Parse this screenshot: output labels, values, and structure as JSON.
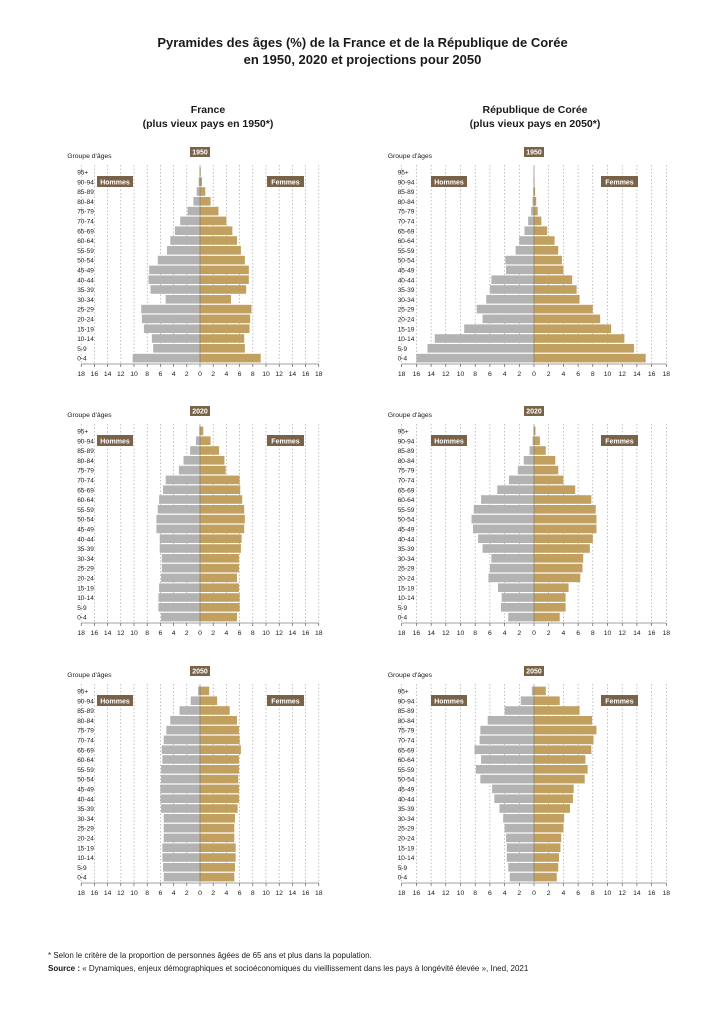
{
  "title_line1": "Pyramides des âges (%) de la France et de la République de Corée",
  "title_line2": "en 1950, 2020 et projections pour 2050",
  "columns": [
    {
      "name": "France",
      "subtitle": "(plus vieux pays en 1950*)"
    },
    {
      "name": "République de Corée",
      "subtitle": "(plus vieux pays en 2050*)"
    }
  ],
  "footnote": "* Selon le critère de la proportion de personnes âgées de 65 ans et plus dans la population.",
  "source_label": "Source :",
  "source_text": " « Dynamiques, enjeux démographiques et socioéconomiques du vieillissement dans les pays à longévité élevée », Ined, 2021",
  "colors": {
    "men": "#b3b3b3",
    "women": "#c2a160",
    "label_bg": "#7a6248",
    "grid": "#9a9a9a"
  },
  "chart_data": [
    {
      "type": "bar",
      "orientation": "horizontal-pyramid",
      "country": "France",
      "year": "1950",
      "ylabel": "Groupe d'âges",
      "men_label": "Hommes",
      "women_label": "Femmes",
      "age_groups": [
        "0-4",
        "5-9",
        "10-14",
        "15-19",
        "20-24",
        "25-29",
        "30-34",
        "35-39",
        "40-44",
        "45-49",
        "50-54",
        "55-59",
        "60-64",
        "65-69",
        "70-74",
        "75-79",
        "80-84",
        "85-89",
        "90-94",
        "95+"
      ],
      "xticks": [
        "18",
        "16",
        "14",
        "12",
        "10",
        "8",
        "6",
        "4",
        "2",
        "0",
        "2",
        "4",
        "6",
        "8",
        "10",
        "12",
        "14",
        "16",
        "18"
      ],
      "xlim": [
        0,
        18
      ],
      "men": [
        10.2,
        7.1,
        7.3,
        8.5,
        8.8,
        8.9,
        5.2,
        7.5,
        7.8,
        7.7,
        6.4,
        5.0,
        4.5,
        3.8,
        3.0,
        1.9,
        1.0,
        0.5,
        0.2,
        0.05
      ],
      "women": [
        9.2,
        6.8,
        6.7,
        7.5,
        7.6,
        7.8,
        4.7,
        7.0,
        7.4,
        7.4,
        6.8,
        6.2,
        5.6,
        4.9,
        4.0,
        2.8,
        1.6,
        0.8,
        0.3,
        0.1
      ]
    },
    {
      "type": "bar",
      "orientation": "horizontal-pyramid",
      "country": "République de Corée",
      "year": "1950",
      "ylabel": "Groupe d'âges",
      "men_label": "Hommes",
      "women_label": "Femmes",
      "age_groups": [
        "0-4",
        "5-9",
        "10-14",
        "15-19",
        "20-24",
        "25-29",
        "30-34",
        "35-39",
        "40-44",
        "45-49",
        "50-54",
        "55-59",
        "60-64",
        "65-69",
        "70-74",
        "75-79",
        "80-84",
        "85-89",
        "90-94",
        "95+"
      ],
      "xticks": [
        "18",
        "16",
        "14",
        "12",
        "10",
        "8",
        "6",
        "4",
        "2",
        "0",
        "2",
        "4",
        "6",
        "8",
        "10",
        "12",
        "14",
        "16",
        "18"
      ],
      "xlim": [
        0,
        18
      ],
      "men": [
        16.0,
        14.5,
        13.5,
        9.5,
        7.0,
        7.8,
        6.5,
        6.0,
        5.8,
        3.8,
        3.9,
        2.5,
        2.0,
        1.3,
        0.8,
        0.4,
        0.2,
        0.1,
        0.05,
        0.02
      ],
      "women": [
        15.2,
        13.6,
        12.3,
        10.5,
        9.0,
        8.0,
        6.2,
        5.8,
        5.2,
        4.0,
        3.8,
        3.3,
        2.8,
        1.8,
        1.0,
        0.5,
        0.3,
        0.15,
        0.05,
        0.02
      ]
    },
    {
      "type": "bar",
      "orientation": "horizontal-pyramid",
      "country": "France",
      "year": "2020",
      "ylabel": "Groupe d'âges",
      "men_label": "Hommes",
      "women_label": "Femmes",
      "age_groups": [
        "0-4",
        "5-9",
        "10-14",
        "15-19",
        "20-24",
        "25-29",
        "30-34",
        "35-39",
        "40-44",
        "45-49",
        "50-54",
        "55-59",
        "60-64",
        "65-69",
        "70-74",
        "75-79",
        "80-84",
        "85-89",
        "90-94",
        "95+"
      ],
      "xticks": [
        "18",
        "16",
        "14",
        "12",
        "10",
        "8",
        "6",
        "4",
        "2",
        "0",
        "2",
        "4",
        "6",
        "8",
        "10",
        "12",
        "14",
        "16",
        "18"
      ],
      "xlim": [
        0,
        18
      ],
      "men": [
        5.9,
        6.3,
        6.3,
        6.2,
        5.9,
        5.8,
        5.8,
        6.1,
        6.1,
        6.6,
        6.6,
        6.4,
        6.2,
        5.6,
        5.2,
        3.2,
        2.5,
        1.5,
        0.6,
        0.1
      ],
      "women": [
        5.6,
        6.0,
        6.0,
        5.9,
        5.6,
        5.9,
        5.9,
        6.2,
        6.3,
        6.7,
        6.8,
        6.7,
        6.4,
        6.1,
        6.0,
        3.9,
        3.7,
        2.9,
        1.6,
        0.5
      ]
    },
    {
      "type": "bar",
      "orientation": "horizontal-pyramid",
      "country": "République de Corée",
      "year": "2020",
      "ylabel": "Groupe d'âges",
      "men_label": "Hommes",
      "women_label": "Femmes",
      "age_groups": [
        "0-4",
        "5-9",
        "10-14",
        "15-19",
        "20-24",
        "25-29",
        "30-34",
        "35-39",
        "40-44",
        "45-49",
        "50-54",
        "55-59",
        "60-64",
        "65-69",
        "70-74",
        "75-79",
        "80-84",
        "85-89",
        "90-94",
        "95+"
      ],
      "xticks": [
        "18",
        "16",
        "14",
        "12",
        "10",
        "8",
        "6",
        "4",
        "2",
        "0",
        "2",
        "4",
        "6",
        "8",
        "10",
        "12",
        "14",
        "16",
        "18"
      ],
      "xlim": [
        0,
        18
      ],
      "men": [
        3.5,
        4.5,
        4.4,
        4.9,
        6.2,
        6.0,
        5.8,
        7.0,
        7.6,
        8.3,
        8.5,
        8.2,
        7.2,
        5.0,
        3.4,
        2.2,
        1.4,
        0.6,
        0.2,
        0.05
      ],
      "women": [
        3.5,
        4.3,
        4.3,
        4.7,
        6.3,
        6.6,
        6.7,
        7.6,
        8.0,
        8.5,
        8.5,
        8.4,
        7.8,
        5.6,
        4.0,
        3.3,
        2.9,
        1.6,
        0.8,
        0.2
      ]
    },
    {
      "type": "bar",
      "orientation": "horizontal-pyramid",
      "country": "France",
      "year": "2050",
      "ylabel": "Groupe d'âges",
      "men_label": "Hommes",
      "women_label": "Femmes",
      "age_groups": [
        "0-4",
        "5-9",
        "10-14",
        "15-19",
        "20-24",
        "25-29",
        "30-34",
        "35-39",
        "40-44",
        "45-49",
        "50-54",
        "55-59",
        "60-64",
        "65-69",
        "70-74",
        "75-79",
        "80-84",
        "85-89",
        "90-94",
        "95+"
      ],
      "xticks": [
        "18",
        "16",
        "14",
        "12",
        "10",
        "8",
        "6",
        "4",
        "2",
        "0",
        "2",
        "4",
        "6",
        "8",
        "10",
        "12",
        "14",
        "16",
        "18"
      ],
      "xlim": [
        0,
        18
      ],
      "men": [
        5.5,
        5.6,
        5.7,
        5.7,
        5.5,
        5.5,
        5.5,
        5.9,
        6.0,
        6.0,
        5.9,
        5.9,
        5.7,
        5.8,
        5.5,
        5.1,
        4.5,
        3.1,
        1.4,
        0.3
      ],
      "women": [
        5.2,
        5.3,
        5.4,
        5.4,
        5.2,
        5.2,
        5.3,
        5.7,
        5.9,
        5.9,
        5.8,
        5.9,
        5.9,
        6.2,
        6.0,
        5.9,
        5.6,
        4.5,
        2.6,
        1.4
      ]
    },
    {
      "type": "bar",
      "orientation": "horizontal-pyramid",
      "country": "République de Corée",
      "year": "2050",
      "ylabel": "Groupe d'âges",
      "men_label": "Hommes",
      "women_label": "Femmes",
      "age_groups": [
        "0-4",
        "5-9",
        "10-14",
        "15-19",
        "20-24",
        "25-29",
        "30-34",
        "35-39",
        "40-44",
        "45-49",
        "50-54",
        "55-59",
        "60-64",
        "65-69",
        "70-74",
        "75-79",
        "80-84",
        "85-89",
        "90-94",
        "95+"
      ],
      "xticks": [
        "18",
        "16",
        "14",
        "12",
        "10",
        "8",
        "6",
        "4",
        "2",
        "0",
        "2",
        "4",
        "6",
        "8",
        "10",
        "12",
        "14",
        "16",
        "18"
      ],
      "xlim": [
        0,
        18
      ],
      "men": [
        3.3,
        3.5,
        3.7,
        3.7,
        3.8,
        4.0,
        4.2,
        4.7,
        5.4,
        5.7,
        7.3,
        7.9,
        7.2,
        8.1,
        7.4,
        7.3,
        6.3,
        4.0,
        1.8,
        0.3
      ],
      "women": [
        3.1,
        3.3,
        3.4,
        3.6,
        3.7,
        4.0,
        4.1,
        4.9,
        5.3,
        5.4,
        6.9,
        7.3,
        7.0,
        7.8,
        8.1,
        8.5,
        7.9,
        6.2,
        3.5,
        1.6
      ]
    }
  ]
}
